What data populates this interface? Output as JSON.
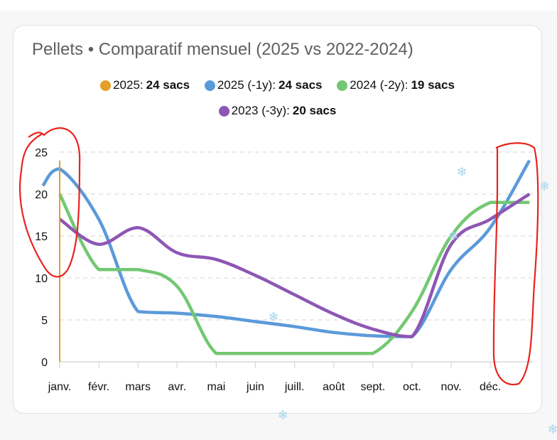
{
  "chart_data": {
    "type": "line",
    "title": "Pellets • Comparatif mensuel (2025 vs 2022-2024)",
    "xlabel": "",
    "ylabel": "",
    "ylim": [
      0,
      25
    ],
    "yticks": [
      "0",
      "5",
      "10",
      "15",
      "20",
      "25"
    ],
    "categories": [
      "janv.",
      "févr.",
      "mars",
      "avr.",
      "mai",
      "juin",
      "juill.",
      "août",
      "sept.",
      "oct.",
      "nov.",
      "déc."
    ],
    "grid": true,
    "legend_position": "top-center",
    "series": [
      {
        "name": "2025",
        "total_label": "24 sacs",
        "color": "#e59e26",
        "x": [
          0,
          0
        ],
        "values": [
          0,
          24
        ]
      },
      {
        "name": "2025 (-1y)",
        "total_label": "24 sacs",
        "color": "#5b9ad9",
        "x": [
          -0.43,
          0,
          1,
          2,
          3,
          4,
          5,
          6,
          7,
          8,
          9,
          10,
          11,
          12
        ],
        "values": [
          21,
          23,
          17,
          6,
          5.8,
          5.4,
          4.8,
          4.2,
          3.5,
          3.1,
          3,
          11,
          16,
          24
        ]
      },
      {
        "name": "2024 (-2y)",
        "total_label": "19 sacs",
        "color": "#73c873",
        "x": [
          0,
          1,
          2,
          3,
          4,
          5,
          6,
          7,
          8,
          9,
          10,
          11,
          12
        ],
        "values": [
          20,
          11,
          11,
          9,
          1,
          1,
          1,
          1,
          1,
          6,
          15,
          19,
          19
        ]
      },
      {
        "name": "2023 (-3y)",
        "total_label": "20 sacs",
        "color": "#8e56b5",
        "x": [
          0,
          1,
          2,
          3,
          4,
          5,
          6,
          7,
          8,
          9,
          10,
          11,
          12
        ],
        "values": [
          17,
          14,
          16,
          13,
          12.2,
          10.3,
          8,
          5.7,
          3.9,
          3,
          14,
          17,
          20
        ]
      }
    ]
  }
}
